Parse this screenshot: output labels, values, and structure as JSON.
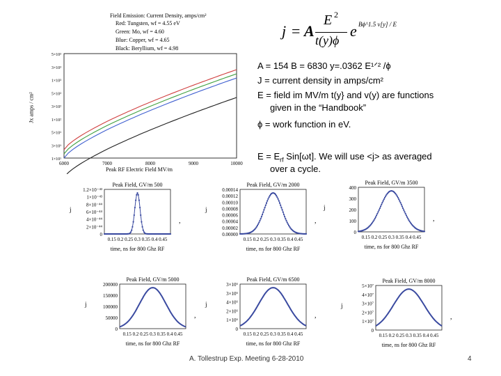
{
  "main_chart": {
    "title": "Field Emission: Current Density, amps/cm²",
    "legend": [
      {
        "label": "Red: Tungsten, wf = 4.55 eV",
        "color": "#d04040"
      },
      {
        "label": "Green: Mo, wf = 4.60",
        "color": "#40a040"
      },
      {
        "label": "Blue: Copper, wf = 4.65",
        "color": "#4060d0"
      },
      {
        "label": "Black: Beryllium, wf = 4.98",
        "color": "#202020"
      }
    ],
    "xlabel": "Peak RF Electric Field MV/m",
    "ylabel": "Jx amps / cm²",
    "yticks": [
      "5×10³",
      "3×10³",
      "1×10³",
      "5×10²",
      "3×10²",
      "1×10²",
      "5×10¹",
      "3×10¹",
      "1×10¹"
    ],
    "xticks": [
      "6000",
      "7000",
      "8000",
      "9000",
      "10000"
    ]
  },
  "formula": {
    "j": "j",
    "eq": "=",
    "A": "A",
    "E2": "E",
    "pow2": "2",
    "den": "t(y)ϕ",
    "e": "e",
    "exp": "Bϕ^1.5 v[y] / E"
  },
  "notes": {
    "line1": "A = 154     B = 6830    y=.0362 E¹ᐟ² /ϕ",
    "line2": "J  =  current density in amps/cm²",
    "line3a": "E  = field im MV/m   t(y} and v(y) are functions",
    "line3b": "given in the “Handbook”",
    "line4": "ϕ   = work function in eV.",
    "line5a": "E = E",
    "line5sub": "rf",
    "line5b": " Sin[ωt].  We will use <j> as averaged",
    "line5c": "over a cycle."
  },
  "plots": [
    {
      "title": "Peak Field, GV/m  500",
      "ylabel": "j",
      "yticks": [
        "1.2×10⁻⁴³",
        "1×10⁻⁴³",
        "8×10⁻⁴⁴",
        "6×10⁻⁴⁴",
        "4×10⁻⁴⁴",
        "2×10⁻⁴⁴",
        "0"
      ],
      "xlabel": "time, ns for 800 Ghz RF",
      "xticks": "0.15 0.2 0.25 0.3 0.35 0.4 0.45",
      "width": 0.012,
      "style": "dots"
    },
    {
      "title": "Peak Field, GV/m  2000",
      "ylabel": "j",
      "yticks": [
        "0.00014",
        "0.00012",
        "0.00010",
        "0.00008",
        "0.00006",
        "0.00004",
        "0.00002",
        "0.00000"
      ],
      "xlabel": "time, ns for 800 Ghz RF",
      "xticks": "0.15 0.2 0.25 0.3 0.35 0.4 0.45",
      "width": 0.04,
      "style": "dots"
    },
    {
      "title": "Peak Field, GV/m  3500",
      "ylabel": "j",
      "yticks": [
        "400",
        "300",
        "200",
        "100",
        "0"
      ],
      "xlabel": "time, ns for 800 Ghz RF",
      "xticks": "0.15 0.2 0.25 0.3 0.35 0.4 0.45",
      "width": 0.05,
      "style": "dots"
    },
    {
      "title": "Peak Field, GV/m  5000",
      "ylabel": "j",
      "yticks": [
        "200000",
        "150000",
        "100000",
        "50000",
        "0"
      ],
      "xlabel": "time, ns for 800 Ghz RF",
      "xticks": "0.15 0.2 0.25 0.3 0.35 0.4 0.45",
      "width": 0.06,
      "style": "line"
    },
    {
      "title": "Peak Field, GV/m  6500",
      "ylabel": "j",
      "yticks": [
        "3×10⁶",
        "3×10⁶",
        "4×10⁶",
        "2×10⁶",
        "1×10⁶",
        "0"
      ],
      "xlabel": "time, ns for 800 Ghz RF",
      "xticks": "0.15 0.2 0.25 0.3 0.35 0.4 0.45",
      "width": 0.065,
      "style": "line"
    },
    {
      "title": "Peak Field, GV/m  8000",
      "ylabel": "j",
      "yticks": [
        "5×10⁷",
        "4×10⁷",
        "3×10⁷",
        "2×10⁷",
        "1×10⁷",
        "0"
      ],
      "xlabel": "time, ns for 800 Ghz RF",
      "xticks": "0.15 0.2 0.25 0.3 0.35 0.4 0.45",
      "width": 0.07,
      "style": "line"
    }
  ],
  "footer": {
    "credit": "A. Tollestrup Exp. Meeting 6-28-2010",
    "page": "4"
  }
}
